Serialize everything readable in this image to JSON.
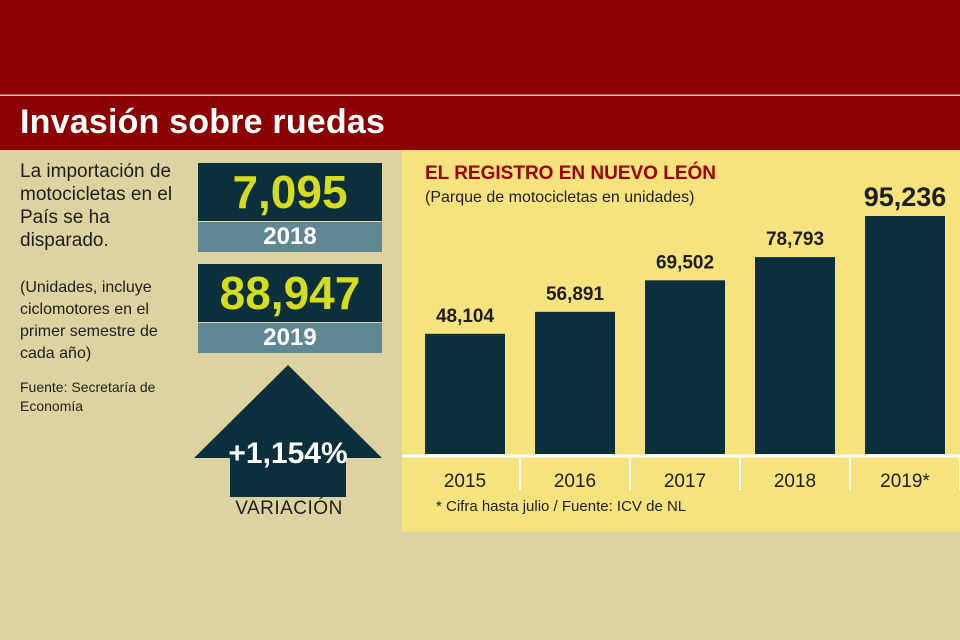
{
  "header": {
    "title": "Invasión sobre ruedas"
  },
  "intro": {
    "text": "La importación de motocicletas en el País se ha disparado.",
    "note": "(Unidades, incluye ciclomotores en el primer semestre de cada año)",
    "source": "Fuente: Secretaría de Economía"
  },
  "stats": [
    {
      "value": "7,095",
      "year": "2018"
    },
    {
      "value": "88,947",
      "year": "2019"
    }
  ],
  "variation": {
    "value": "+1,154%",
    "label": "VARIACIÓN"
  },
  "colors": {
    "header": "#8b0000",
    "bar": "#0c2f3d",
    "accent": "#d6dc1e",
    "chart_bg": "#f7e37e",
    "panel_bg": "#ddd3a0",
    "title_red": "#a00000"
  },
  "chart_data": {
    "type": "bar",
    "title": "EL REGISTRO EN NUEVO LEÓN",
    "subtitle": "(Parque de motocicletas en unidades)",
    "categories": [
      "2015",
      "2016",
      "2017",
      "2018",
      "2019*"
    ],
    "values": [
      48104,
      56891,
      69502,
      78793,
      95236
    ],
    "value_labels": [
      "48,104",
      "56,891",
      "69,502",
      "78,793",
      "95,236"
    ],
    "ylim": [
      0,
      100000
    ],
    "xlabel": "",
    "ylabel": "",
    "footnote": "* Cifra hasta julio  / Fuente: ICV de NL"
  }
}
